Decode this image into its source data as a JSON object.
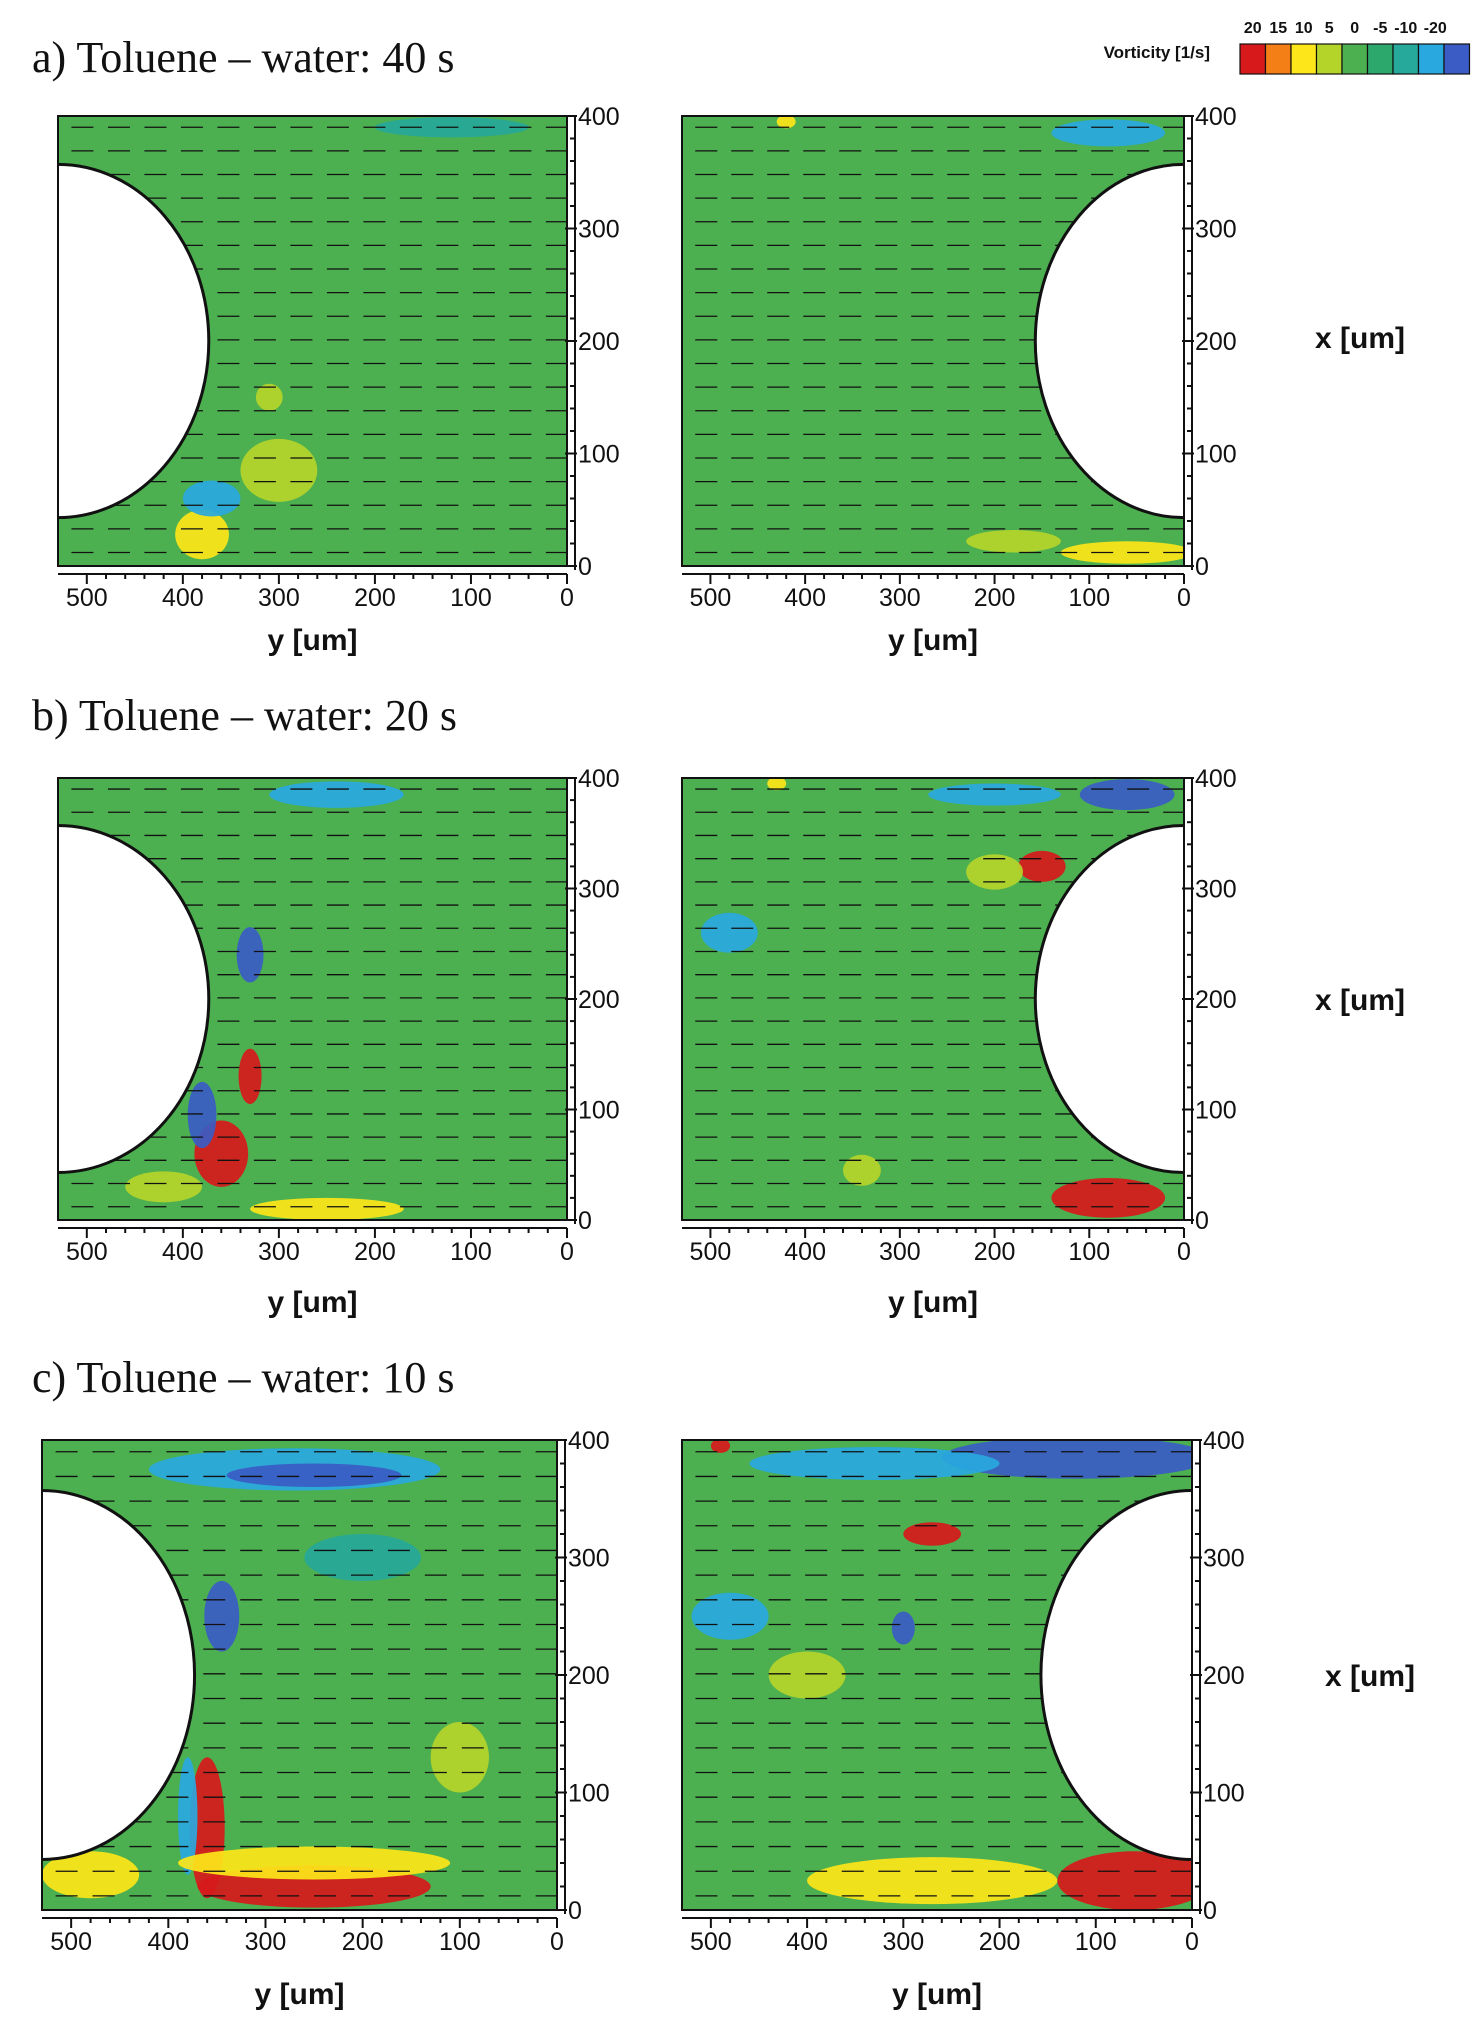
{
  "legend": {
    "title": "Vorticity [1/s]",
    "tick_labels": [
      "20",
      "15",
      "10",
      "5",
      "0",
      "-5",
      "-10",
      "-20"
    ],
    "colors": [
      "#d7191c",
      "#f57f17",
      "#fde619",
      "#b5d42a",
      "#4caf50",
      "#2ca86d",
      "#26a89a",
      "#29a8e0",
      "#3a5cc4"
    ]
  },
  "chart_data": [
    {
      "type": "heatmap",
      "id": "a-left",
      "title": "a) Toluene – water: 40 s",
      "xlabel": "y [um]",
      "ylabel": "",
      "x_ticks": [
        "500",
        "400",
        "300",
        "200",
        "100",
        "0"
      ],
      "y_ticks": [
        "0",
        "100",
        "200",
        "300",
        "400"
      ],
      "xlim": [
        530,
        0
      ],
      "ylim": [
        0,
        400
      ],
      "obstacle": {
        "side": "left",
        "center_y": 530,
        "center_x": 200,
        "radius": 157
      },
      "features": [
        {
          "y": 380,
          "x": 28,
          "ry": 28,
          "rx": 22,
          "color": "#fde619"
        },
        {
          "y": 300,
          "x": 85,
          "ry": 40,
          "rx": 28,
          "color": "#b5d42a"
        },
        {
          "y": 310,
          "x": 150,
          "ry": 14,
          "rx": 12,
          "color": "#b5d42a"
        },
        {
          "y": 370,
          "x": 60,
          "ry": 30,
          "rx": 16,
          "color": "#29a8e0"
        },
        {
          "y": 120,
          "x": 390,
          "ry": 80,
          "rx": 9,
          "color": "#26a89a"
        }
      ]
    },
    {
      "type": "heatmap",
      "id": "a-right",
      "title": "",
      "xlabel": "y [um]",
      "ylabel": "x [um]",
      "x_ticks": [
        "500",
        "400",
        "300",
        "200",
        "100",
        "0"
      ],
      "y_ticks": [
        "0",
        "100",
        "200",
        "300",
        "400"
      ],
      "xlim": [
        530,
        0
      ],
      "ylim": [
        0,
        400
      ],
      "obstacle": {
        "side": "right",
        "center_y": 0,
        "center_x": 200,
        "radius": 157
      },
      "features": [
        {
          "y": 80,
          "x": 385,
          "ry": 60,
          "rx": 12,
          "color": "#29a8e0"
        },
        {
          "y": 60,
          "x": 12,
          "ry": 70,
          "rx": 10,
          "color": "#fde619"
        },
        {
          "y": 180,
          "x": 22,
          "ry": 50,
          "rx": 10,
          "color": "#b5d42a"
        },
        {
          "y": 420,
          "x": 395,
          "ry": 10,
          "rx": 6,
          "color": "#fde619"
        }
      ]
    },
    {
      "type": "heatmap",
      "id": "b-left",
      "title": "b) Toluene – water: 20 s",
      "xlabel": "y [um]",
      "ylabel": "",
      "x_ticks": [
        "500",
        "400",
        "300",
        "200",
        "100",
        "0"
      ],
      "y_ticks": [
        "0",
        "100",
        "200",
        "300",
        "400"
      ],
      "xlim": [
        530,
        0
      ],
      "ylim": [
        0,
        400
      ],
      "obstacle": {
        "side": "left",
        "center_y": 530,
        "center_x": 200,
        "radius": 157
      },
      "features": [
        {
          "y": 360,
          "x": 60,
          "ry": 28,
          "rx": 30,
          "color": "#d7191c"
        },
        {
          "y": 330,
          "x": 130,
          "ry": 12,
          "rx": 25,
          "color": "#d7191c"
        },
        {
          "y": 380,
          "x": 95,
          "ry": 15,
          "rx": 30,
          "color": "#3a5cc4"
        },
        {
          "y": 330,
          "x": 240,
          "ry": 14,
          "rx": 25,
          "color": "#3a5cc4"
        },
        {
          "y": 250,
          "x": 10,
          "ry": 80,
          "rx": 10,
          "color": "#fde619"
        },
        {
          "y": 240,
          "x": 385,
          "ry": 70,
          "rx": 12,
          "color": "#29a8e0"
        },
        {
          "y": 420,
          "x": 30,
          "ry": 40,
          "rx": 14,
          "color": "#b5d42a"
        }
      ]
    },
    {
      "type": "heatmap",
      "id": "b-right",
      "title": "",
      "xlabel": "y [um]",
      "ylabel": "x [um]",
      "x_ticks": [
        "500",
        "400",
        "300",
        "200",
        "100",
        "0"
      ],
      "y_ticks": [
        "0",
        "100",
        "200",
        "300",
        "400"
      ],
      "xlim": [
        530,
        0
      ],
      "ylim": [
        0,
        400
      ],
      "obstacle": {
        "side": "right",
        "center_y": 0,
        "center_x": 200,
        "radius": 157
      },
      "features": [
        {
          "y": 80,
          "x": 20,
          "ry": 60,
          "rx": 18,
          "color": "#d7191c"
        },
        {
          "y": 60,
          "x": 385,
          "ry": 50,
          "rx": 14,
          "color": "#3a5cc4"
        },
        {
          "y": 200,
          "x": 385,
          "ry": 70,
          "rx": 10,
          "color": "#29a8e0"
        },
        {
          "y": 150,
          "x": 320,
          "ry": 25,
          "rx": 14,
          "color": "#d7191c"
        },
        {
          "y": 200,
          "x": 315,
          "ry": 30,
          "rx": 16,
          "color": "#b5d42a"
        },
        {
          "y": 340,
          "x": 45,
          "ry": 20,
          "rx": 14,
          "color": "#b5d42a"
        },
        {
          "y": 480,
          "x": 260,
          "ry": 30,
          "rx": 18,
          "color": "#29a8e0"
        },
        {
          "y": 430,
          "x": 395,
          "ry": 10,
          "rx": 6,
          "color": "#fde619"
        }
      ]
    },
    {
      "type": "heatmap",
      "id": "c-left",
      "title": "c) Toluene – water: 10 s",
      "xlabel": "y [um]",
      "ylabel": "",
      "x_ticks": [
        "500",
        "400",
        "300",
        "200",
        "100",
        "0"
      ],
      "y_ticks": [
        "0",
        "100",
        "200",
        "300",
        "400"
      ],
      "xlim": [
        530,
        0
      ],
      "ylim": [
        0,
        400
      ],
      "obstacle": {
        "side": "left",
        "center_y": 530,
        "center_x": 200,
        "radius": 157
      },
      "features": [
        {
          "y": 360,
          "x": 70,
          "ry": 18,
          "rx": 60,
          "color": "#d7191c"
        },
        {
          "y": 380,
          "x": 80,
          "ry": 10,
          "rx": 50,
          "color": "#29a8e0"
        },
        {
          "y": 250,
          "x": 20,
          "ry": 120,
          "rx": 18,
          "color": "#d7191c"
        },
        {
          "y": 250,
          "x": 40,
          "ry": 140,
          "rx": 14,
          "color": "#fde619"
        },
        {
          "y": 480,
          "x": 30,
          "ry": 50,
          "rx": 20,
          "color": "#fde619"
        },
        {
          "y": 270,
          "x": 375,
          "ry": 150,
          "rx": 18,
          "color": "#29a8e0"
        },
        {
          "y": 250,
          "x": 370,
          "ry": 90,
          "rx": 10,
          "color": "#3a5cc4"
        },
        {
          "y": 345,
          "x": 250,
          "ry": 18,
          "rx": 30,
          "color": "#3a5cc4"
        },
        {
          "y": 200,
          "x": 300,
          "ry": 60,
          "rx": 20,
          "color": "#26a89a"
        },
        {
          "y": 100,
          "x": 130,
          "ry": 30,
          "rx": 30,
          "color": "#b5d42a"
        }
      ]
    },
    {
      "type": "heatmap",
      "id": "c-right",
      "title": "",
      "xlabel": "y [um]",
      "ylabel": "x [um]",
      "x_ticks": [
        "500",
        "400",
        "300",
        "200",
        "100",
        "0"
      ],
      "y_ticks": [
        "0",
        "100",
        "200",
        "300",
        "400"
      ],
      "xlim": [
        530,
        0
      ],
      "ylim": [
        0,
        400
      ],
      "obstacle": {
        "side": "right",
        "center_y": 0,
        "center_x": 200,
        "radius": 157
      },
      "features": [
        {
          "y": 60,
          "x": 25,
          "ry": 80,
          "rx": 25,
          "color": "#d7191c"
        },
        {
          "y": 270,
          "x": 25,
          "ry": 130,
          "rx": 20,
          "color": "#fde619"
        },
        {
          "y": 120,
          "x": 385,
          "ry": 140,
          "rx": 18,
          "color": "#3a5cc4"
        },
        {
          "y": 330,
          "x": 380,
          "ry": 130,
          "rx": 14,
          "color": "#29a8e0"
        },
        {
          "y": 480,
          "x": 250,
          "ry": 40,
          "rx": 20,
          "color": "#29a8e0"
        },
        {
          "y": 270,
          "x": 320,
          "ry": 30,
          "rx": 10,
          "color": "#d7191c"
        },
        {
          "y": 300,
          "x": 240,
          "ry": 12,
          "rx": 14,
          "color": "#3a5cc4"
        },
        {
          "y": 400,
          "x": 200,
          "ry": 40,
          "rx": 20,
          "color": "#b5d42a"
        },
        {
          "y": 490,
          "x": 395,
          "ry": 10,
          "rx": 6,
          "color": "#d7191c"
        }
      ]
    }
  ]
}
